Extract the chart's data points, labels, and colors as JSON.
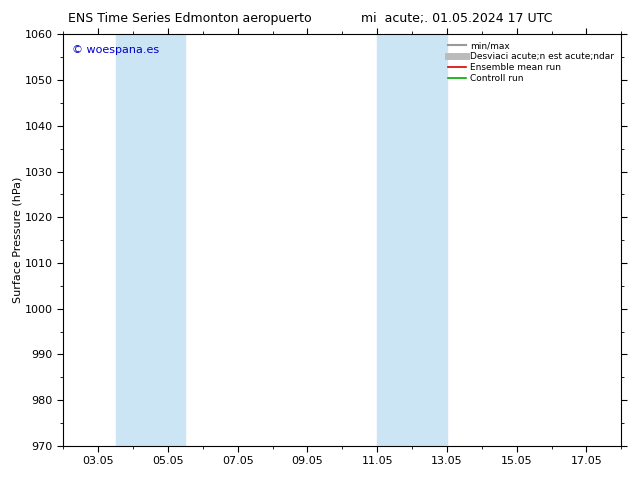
{
  "title_left": "ENS Time Series Edmonton aeropuerto",
  "title_right": "mi  acute;. 01.05.2024 17 UTC",
  "ylabel": "Surface Pressure (hPa)",
  "ylim": [
    970,
    1060
  ],
  "yticks": [
    970,
    980,
    990,
    1000,
    1010,
    1020,
    1030,
    1040,
    1050,
    1060
  ],
  "xtick_labels": [
    "03.05",
    "05.05",
    "07.05",
    "09.05",
    "11.05",
    "13.05",
    "15.05",
    "17.05"
  ],
  "xtick_positions": [
    3,
    5,
    7,
    9,
    11,
    13,
    15,
    17
  ],
  "xlim": [
    2.0,
    18.0
  ],
  "shaded_bands": [
    {
      "x_start": 3.5,
      "x_end": 5.5
    },
    {
      "x_start": 11.0,
      "x_end": 13.0
    }
  ],
  "watermark": "© woespana.es",
  "watermark_color": "#0000cc",
  "legend_entries": [
    {
      "label": "min/max",
      "color": "#999999",
      "lw": 1.5
    },
    {
      "label": "Desviaci acute;n est acute;ndar",
      "color": "#bbbbbb",
      "lw": 5
    },
    {
      "label": "Ensemble mean run",
      "color": "#dd0000",
      "lw": 1.2
    },
    {
      "label": "Controll run",
      "color": "#00aa00",
      "lw": 1.2
    }
  ],
  "bg_color": "#ffffff",
  "plot_bg_color": "#ffffff",
  "shaded_color": "#cce5f5",
  "border_color": "#000000",
  "title_fontsize": 9,
  "tick_fontsize": 8,
  "ylabel_fontsize": 8
}
